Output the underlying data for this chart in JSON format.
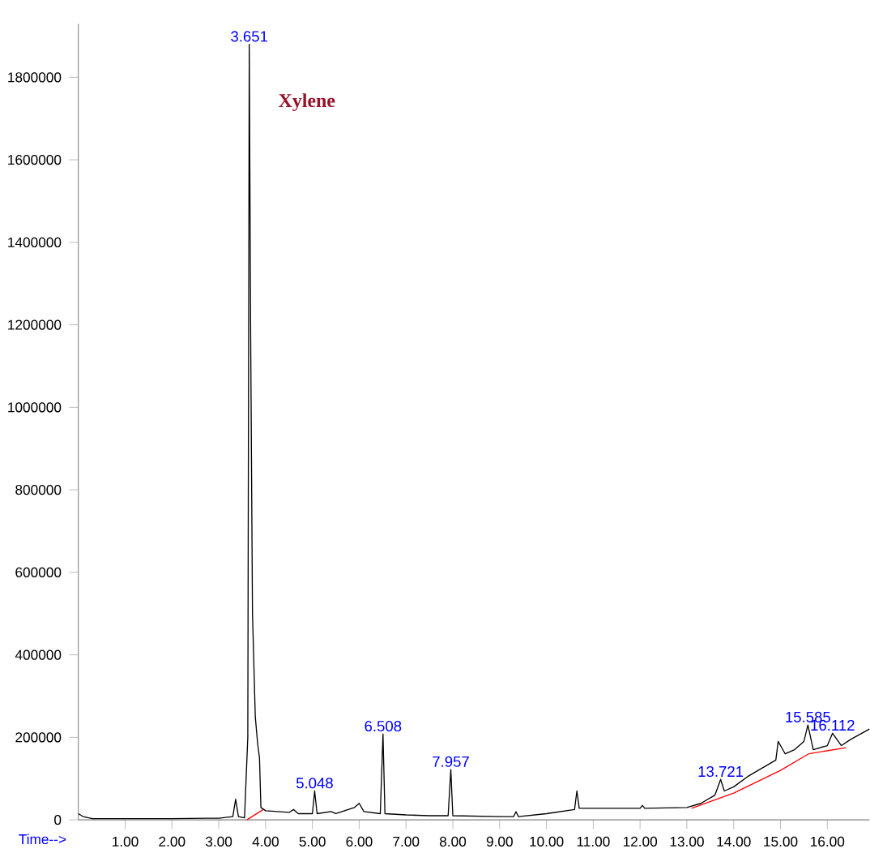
{
  "chart_data": {
    "type": "line",
    "xlabel": "Time-->",
    "xlim": [
      0,
      16.9
    ],
    "ylim": [
      0,
      1930000
    ],
    "xticks": [
      {
        "value": 1,
        "label": "1.00"
      },
      {
        "value": 2,
        "label": "2.00"
      },
      {
        "value": 3,
        "label": "3.00"
      },
      {
        "value": 4,
        "label": "4.00"
      },
      {
        "value": 5,
        "label": "5.00"
      },
      {
        "value": 6,
        "label": "6.00"
      },
      {
        "value": 7,
        "label": "7.00"
      },
      {
        "value": 8,
        "label": "8.00"
      },
      {
        "value": 9,
        "label": "9.00"
      },
      {
        "value": 10,
        "label": "10.00"
      },
      {
        "value": 11,
        "label": "11.00"
      },
      {
        "value": 12,
        "label": "12.00"
      },
      {
        "value": 13,
        "label": "13.00"
      },
      {
        "value": 14,
        "label": "14.00"
      },
      {
        "value": 15,
        "label": "15.00"
      },
      {
        "value": 16,
        "label": "16.00"
      }
    ],
    "yticks": [
      0,
      200000,
      400000,
      600000,
      800000,
      1000000,
      1200000,
      1400000,
      1600000,
      1800000
    ],
    "grid": false,
    "marker": "none",
    "line_style": "solid",
    "series": [
      {
        "color": "#000000",
        "x": [
          0,
          0.1,
          0.3,
          1.0,
          2.0,
          3.0,
          3.3,
          3.36,
          3.42,
          3.55,
          3.62,
          3.651,
          3.68,
          3.72,
          3.78,
          3.83,
          3.87,
          3.9,
          4.0,
          4.5,
          4.6,
          4.7,
          5.0,
          5.048,
          5.1,
          5.4,
          5.5,
          5.9,
          6.0,
          6.1,
          6.45,
          6.508,
          6.55,
          7.0,
          7.5,
          7.9,
          7.957,
          8.0,
          9.0,
          9.3,
          9.35,
          9.4,
          10.0,
          10.6,
          10.65,
          10.7,
          11.0,
          12.0,
          12.05,
          12.1,
          13.0,
          13.3,
          13.6,
          13.721,
          13.8,
          14.0,
          14.3,
          14.6,
          14.9,
          14.95,
          15.1,
          15.3,
          15.5,
          15.585,
          15.7,
          16.0,
          16.112,
          16.3,
          16.5,
          16.9
        ],
        "values": [
          15000,
          8000,
          3000,
          3000,
          3000,
          4000,
          8000,
          50000,
          8000,
          5000,
          200000,
          1880000,
          1200000,
          500000,
          250000,
          185000,
          150000,
          30000,
          22000,
          18000,
          25000,
          15000,
          15000,
          70000,
          15000,
          20000,
          15000,
          30000,
          40000,
          20000,
          15000,
          208000,
          15000,
          12000,
          10000,
          10000,
          122000,
          10000,
          8000,
          8000,
          20000,
          8000,
          15000,
          25000,
          70000,
          28000,
          28000,
          28000,
          35000,
          28000,
          30000,
          40000,
          60000,
          98000,
          70000,
          80000,
          105000,
          125000,
          145000,
          190000,
          160000,
          170000,
          190000,
          230000,
          170000,
          180000,
          210000,
          180000,
          195000,
          220000
        ]
      },
      {
        "color": "#ff0000",
        "x": [
          3.6,
          3.95,
          4.0,
          13.1,
          14.0,
          15.0,
          15.6,
          16.4
        ],
        "values": [
          0,
          25000,
          null,
          28000,
          65000,
          120000,
          160000,
          175000
        ]
      }
    ],
    "annotations": [
      {
        "text": "3.651",
        "x": 3.651,
        "y": 1880000
      },
      {
        "text": "Xylene",
        "x": 3.651,
        "y": 1800000
      },
      {
        "text": "5.048",
        "x": 5.048,
        "y": 70000
      },
      {
        "text": "6.508",
        "x": 6.508,
        "y": 208000
      },
      {
        "text": "7.957",
        "x": 7.957,
        "y": 122000
      },
      {
        "text": "13.721",
        "x": 13.721,
        "y": 98000
      },
      {
        "text": "15.585",
        "x": 15.585,
        "y": 230000
      },
      {
        "text": "16.112",
        "x": 16.112,
        "y": 210000
      }
    ]
  }
}
